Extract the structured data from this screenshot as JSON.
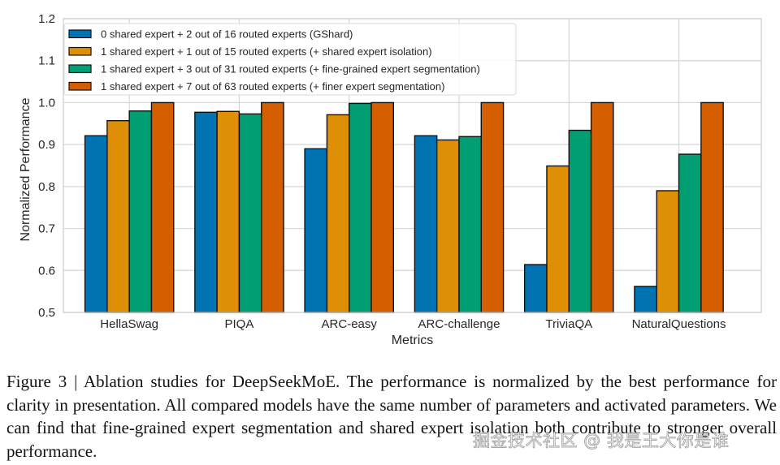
{
  "chart_data": {
    "type": "bar",
    "title": "",
    "xlabel": "Metrics",
    "ylabel": "Normalized Performance",
    "ylim": [
      0.5,
      1.2
    ],
    "yticks": [
      0.5,
      0.6,
      0.7,
      0.8,
      0.9,
      1.0,
      1.1,
      1.2
    ],
    "ytick_labels": [
      "0.5",
      "0.6",
      "0.7",
      "0.8",
      "0.9",
      "1.0",
      "1.1",
      "1.2"
    ],
    "grid": true,
    "legend_position": "top-left",
    "categories": [
      "HellaSwag",
      "PIQA",
      "ARC-easy",
      "ARC-challenge",
      "TriviaQA",
      "NaturalQuestions"
    ],
    "series": [
      {
        "name": "0 shared expert + 2 out of 16 routed experts (GShard)",
        "color": "#0173B2",
        "values": [
          0.921,
          0.977,
          0.89,
          0.921,
          0.614,
          0.562
        ]
      },
      {
        "name": "1 shared expert + 1 out of 15 routed experts (+ shared expert isolation)",
        "color": "#DE8F05",
        "values": [
          0.957,
          0.979,
          0.971,
          0.911,
          0.849,
          0.79
        ]
      },
      {
        "name": "1 shared expert + 3 out of 31 routed experts (+ fine-grained expert segmentation)",
        "color": "#029E73",
        "values": [
          0.98,
          0.973,
          0.998,
          0.919,
          0.934,
          0.877
        ]
      },
      {
        "name": "1 shared expert + 7 out of 63 routed experts (+ finer expert segmentation)",
        "color": "#D55E00",
        "values": [
          1.0,
          1.0,
          1.0,
          1.0,
          1.0,
          1.0
        ]
      }
    ]
  },
  "caption": "Figure 3 | Ablation studies for DeepSeekMoE. The performance is normalized by the best performance for clarity in presentation. All compared models have the same number of parameters and activated parameters. We can find that fine-grained expert segmentation and shared expert isolation both contribute to stronger overall performance.",
  "watermark": "掘金技术社区 @ 我是王大你是谁"
}
